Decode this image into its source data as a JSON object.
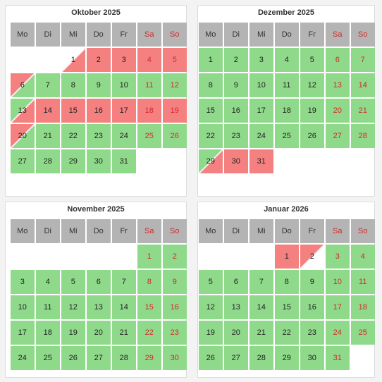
{
  "weekdays": [
    {
      "label": "Mo",
      "weekend": false
    },
    {
      "label": "Di",
      "weekend": false
    },
    {
      "label": "Mi",
      "weekend": false
    },
    {
      "label": "Do",
      "weekend": false
    },
    {
      "label": "Fr",
      "weekend": false
    },
    {
      "label": "Sa",
      "weekend": true
    },
    {
      "label": "So",
      "weekend": true
    }
  ],
  "colors": {
    "free": "#8fd98a",
    "booked": "#f58080",
    "header": "#b4b4b4",
    "weekend_text": "#d62828"
  },
  "months": [
    {
      "title": "Oktober 2025",
      "start_weekday": 3,
      "days": [
        {
          "d": "1",
          "s": "ci-busy"
        },
        {
          "d": "2",
          "s": "busy"
        },
        {
          "d": "3",
          "s": "busy"
        },
        {
          "d": "4",
          "s": "busy"
        },
        {
          "d": "5",
          "s": "busy"
        },
        {
          "d": "6",
          "s": "co"
        },
        {
          "d": "7",
          "s": "free"
        },
        {
          "d": "8",
          "s": "free"
        },
        {
          "d": "9",
          "s": "free"
        },
        {
          "d": "10",
          "s": "free"
        },
        {
          "d": "11",
          "s": "free"
        },
        {
          "d": "12",
          "s": "free"
        },
        {
          "d": "13",
          "s": "sw-gr"
        },
        {
          "d": "14",
          "s": "busy"
        },
        {
          "d": "15",
          "s": "busy"
        },
        {
          "d": "16",
          "s": "busy"
        },
        {
          "d": "17",
          "s": "busy"
        },
        {
          "d": "18",
          "s": "busy"
        },
        {
          "d": "19",
          "s": "busy"
        },
        {
          "d": "20",
          "s": "co"
        },
        {
          "d": "21",
          "s": "free"
        },
        {
          "d": "22",
          "s": "free"
        },
        {
          "d": "23",
          "s": "free"
        },
        {
          "d": "24",
          "s": "free"
        },
        {
          "d": "25",
          "s": "free"
        },
        {
          "d": "26",
          "s": "free"
        },
        {
          "d": "27",
          "s": "free"
        },
        {
          "d": "28",
          "s": "free"
        },
        {
          "d": "29",
          "s": "free"
        },
        {
          "d": "30",
          "s": "free"
        },
        {
          "d": "31",
          "s": "free"
        }
      ]
    },
    {
      "title": "Dezember 2025",
      "start_weekday": 1,
      "days": [
        {
          "d": "1",
          "s": "free"
        },
        {
          "d": "2",
          "s": "free"
        },
        {
          "d": "3",
          "s": "free"
        },
        {
          "d": "4",
          "s": "free"
        },
        {
          "d": "5",
          "s": "free"
        },
        {
          "d": "6",
          "s": "free"
        },
        {
          "d": "7",
          "s": "free"
        },
        {
          "d": "8",
          "s": "free"
        },
        {
          "d": "9",
          "s": "free"
        },
        {
          "d": "10",
          "s": "free"
        },
        {
          "d": "11",
          "s": "free"
        },
        {
          "d": "12",
          "s": "free"
        },
        {
          "d": "13",
          "s": "free"
        },
        {
          "d": "14",
          "s": "free"
        },
        {
          "d": "15",
          "s": "free"
        },
        {
          "d": "16",
          "s": "free"
        },
        {
          "d": "17",
          "s": "free"
        },
        {
          "d": "18",
          "s": "free"
        },
        {
          "d": "19",
          "s": "free"
        },
        {
          "d": "20",
          "s": "free"
        },
        {
          "d": "21",
          "s": "free"
        },
        {
          "d": "22",
          "s": "free"
        },
        {
          "d": "23",
          "s": "free"
        },
        {
          "d": "24",
          "s": "free"
        },
        {
          "d": "25",
          "s": "free"
        },
        {
          "d": "26",
          "s": "free"
        },
        {
          "d": "27",
          "s": "free"
        },
        {
          "d": "28",
          "s": "free"
        },
        {
          "d": "29",
          "s": "sw-gr"
        },
        {
          "d": "30",
          "s": "busy"
        },
        {
          "d": "31",
          "s": "busy"
        }
      ]
    },
    {
      "title": "November 2025",
      "start_weekday": 6,
      "days": [
        {
          "d": "1",
          "s": "free"
        },
        {
          "d": "2",
          "s": "free"
        },
        {
          "d": "3",
          "s": "free"
        },
        {
          "d": "4",
          "s": "free"
        },
        {
          "d": "5",
          "s": "free"
        },
        {
          "d": "6",
          "s": "free"
        },
        {
          "d": "7",
          "s": "free"
        },
        {
          "d": "8",
          "s": "free"
        },
        {
          "d": "9",
          "s": "free"
        },
        {
          "d": "10",
          "s": "free"
        },
        {
          "d": "11",
          "s": "free"
        },
        {
          "d": "12",
          "s": "free"
        },
        {
          "d": "13",
          "s": "free"
        },
        {
          "d": "14",
          "s": "free"
        },
        {
          "d": "15",
          "s": "free"
        },
        {
          "d": "16",
          "s": "free"
        },
        {
          "d": "17",
          "s": "free"
        },
        {
          "d": "18",
          "s": "free"
        },
        {
          "d": "19",
          "s": "free"
        },
        {
          "d": "20",
          "s": "free"
        },
        {
          "d": "21",
          "s": "free"
        },
        {
          "d": "22",
          "s": "free"
        },
        {
          "d": "23",
          "s": "free"
        },
        {
          "d": "24",
          "s": "free"
        },
        {
          "d": "25",
          "s": "free"
        },
        {
          "d": "26",
          "s": "free"
        },
        {
          "d": "27",
          "s": "free"
        },
        {
          "d": "28",
          "s": "free"
        },
        {
          "d": "29",
          "s": "free"
        },
        {
          "d": "30",
          "s": "free"
        }
      ]
    },
    {
      "title": "Januar 2026",
      "start_weekday": 4,
      "days": [
        {
          "d": "1",
          "s": "busy"
        },
        {
          "d": "2",
          "s": "co-white"
        },
        {
          "d": "3",
          "s": "free"
        },
        {
          "d": "4",
          "s": "free"
        },
        {
          "d": "5",
          "s": "free"
        },
        {
          "d": "6",
          "s": "free"
        },
        {
          "d": "7",
          "s": "free"
        },
        {
          "d": "8",
          "s": "free"
        },
        {
          "d": "9",
          "s": "free"
        },
        {
          "d": "10",
          "s": "free"
        },
        {
          "d": "11",
          "s": "free"
        },
        {
          "d": "12",
          "s": "free"
        },
        {
          "d": "13",
          "s": "free"
        },
        {
          "d": "14",
          "s": "free"
        },
        {
          "d": "15",
          "s": "free"
        },
        {
          "d": "16",
          "s": "free"
        },
        {
          "d": "17",
          "s": "free"
        },
        {
          "d": "18",
          "s": "free"
        },
        {
          "d": "19",
          "s": "free"
        },
        {
          "d": "20",
          "s": "free"
        },
        {
          "d": "21",
          "s": "free"
        },
        {
          "d": "22",
          "s": "free"
        },
        {
          "d": "23",
          "s": "free"
        },
        {
          "d": "24",
          "s": "free"
        },
        {
          "d": "25",
          "s": "free"
        },
        {
          "d": "26",
          "s": "free"
        },
        {
          "d": "27",
          "s": "free"
        },
        {
          "d": "28",
          "s": "free"
        },
        {
          "d": "29",
          "s": "free"
        },
        {
          "d": "30",
          "s": "free"
        },
        {
          "d": "31",
          "s": "free"
        }
      ]
    }
  ]
}
